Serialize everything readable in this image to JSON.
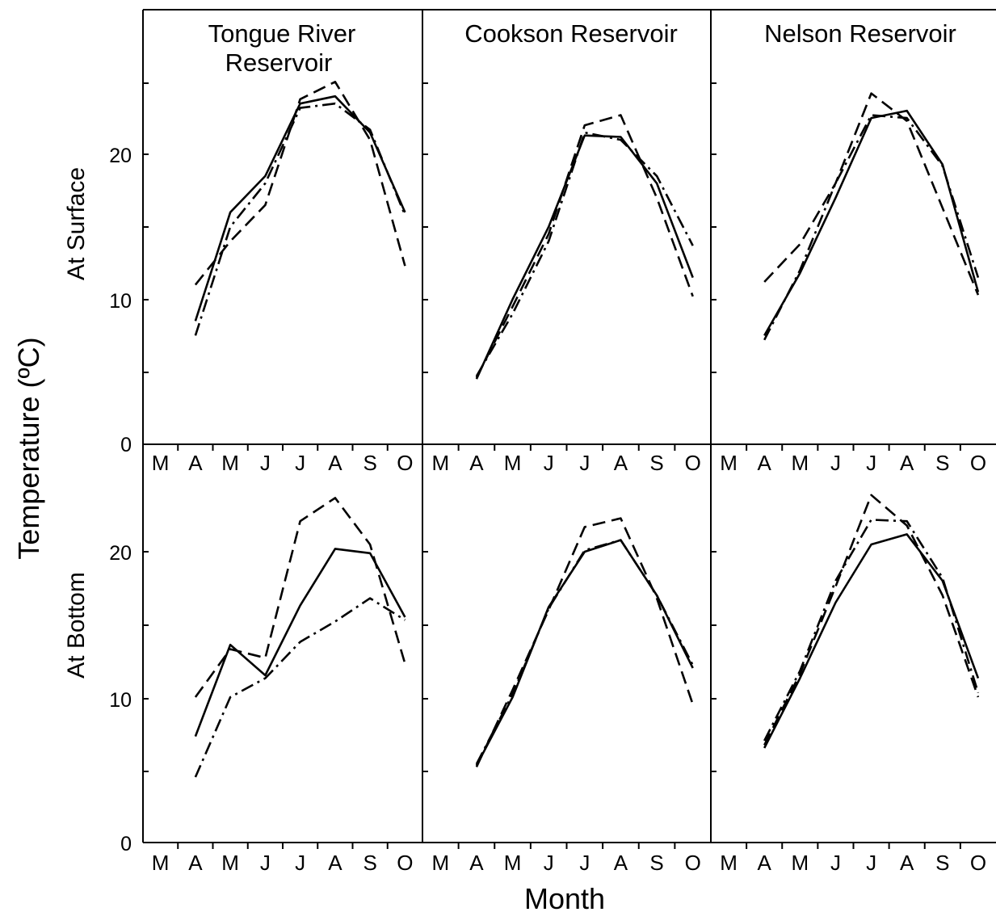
{
  "y_axis_label": "Temperature (ºC)",
  "x_axis_label": "Month",
  "rows": [
    {
      "label": "At Surface",
      "ticks": [
        "20",
        "10",
        "0"
      ]
    },
    {
      "label": "At Bottom",
      "ticks": [
        "20",
        "10",
        "0"
      ]
    }
  ],
  "columns": [
    {
      "title_lines": [
        "Tongue River",
        "Reservoir"
      ]
    },
    {
      "title_lines": [
        "Cookson Reservoir"
      ]
    },
    {
      "title_lines": [
        "Nelson Reservoir"
      ]
    }
  ],
  "months": [
    "M",
    "A",
    "M",
    "J",
    "J",
    "A",
    "S",
    "O"
  ],
  "colors": {
    "ink": "#000000",
    "background": "#ffffff"
  },
  "chart_data": [
    {
      "type": "line",
      "row": "At Surface",
      "column": "Tongue River Reservoir",
      "x": [
        "A",
        "M",
        "J",
        "J",
        "A",
        "S",
        "O"
      ],
      "ylim": [
        0,
        30
      ],
      "series": [
        {
          "line_style": "solid",
          "values": [
            8.5,
            16,
            18.5,
            23.5,
            24,
            21.5,
            16
          ]
        },
        {
          "line_style": "dashed",
          "values": [
            11,
            14,
            16.5,
            23.8,
            25,
            21,
            12.3
          ]
        },
        {
          "line_style": "dash-dot",
          "values": [
            7.5,
            15,
            18,
            23.2,
            23.5,
            21.7,
            15.8
          ]
        }
      ]
    },
    {
      "type": "line",
      "row": "At Surface",
      "column": "Cookson Reservoir",
      "x": [
        "A",
        "M",
        "J",
        "J",
        "A",
        "S",
        "O"
      ],
      "ylim": [
        0,
        30
      ],
      "series": [
        {
          "line_style": "solid",
          "values": [
            4.5,
            10,
            15,
            21.3,
            21.2,
            18,
            11.5
          ]
        },
        {
          "line_style": "dashed",
          "values": [
            4.6,
            9.5,
            14.5,
            22,
            22.7,
            17,
            10.2
          ]
        },
        {
          "line_style": "dash-dot",
          "values": [
            4.7,
            9,
            14,
            21.5,
            21,
            18.5,
            13.7
          ]
        }
      ]
    },
    {
      "type": "line",
      "row": "At Surface",
      "column": "Nelson Reservoir",
      "x": [
        "A",
        "M",
        "J",
        "J",
        "A",
        "S",
        "O"
      ],
      "ylim": [
        0,
        30
      ],
      "series": [
        {
          "line_style": "solid",
          "values": [
            7.5,
            11.8,
            17,
            22.5,
            23,
            19.3,
            10.5
          ]
        },
        {
          "line_style": "dashed",
          "values": [
            11.2,
            13.8,
            18,
            24.2,
            22.3,
            16.3,
            10.3
          ]
        },
        {
          "line_style": "dash-dot",
          "values": [
            7.2,
            12,
            18,
            22.7,
            22.5,
            19.2,
            11.5
          ]
        }
      ]
    },
    {
      "type": "line",
      "row": "At Bottom",
      "column": "Tongue River Reservoir",
      "x": [
        "A",
        "M",
        "J",
        "J",
        "A",
        "S",
        "O"
      ],
      "ylim": [
        0,
        27
      ],
      "series": [
        {
          "line_style": "solid",
          "values": [
            7.3,
            13.6,
            11.5,
            16.3,
            20.2,
            19.9,
            15.5
          ]
        },
        {
          "line_style": "dashed",
          "values": [
            10,
            13.3,
            12.7,
            22.1,
            23.7,
            20.5,
            12.3
          ]
        },
        {
          "line_style": "dash-dot",
          "values": [
            4.5,
            10,
            11.3,
            13.8,
            15.2,
            16.8,
            15.3
          ]
        }
      ]
    },
    {
      "type": "line",
      "row": "At Bottom",
      "column": "Cookson Reservoir",
      "x": [
        "A",
        "M",
        "J",
        "J",
        "A",
        "S",
        "O"
      ],
      "ylim": [
        0,
        27
      ],
      "series": [
        {
          "line_style": "solid",
          "values": [
            5.3,
            10,
            16.2,
            20,
            20.8,
            17,
            12
          ]
        },
        {
          "line_style": "dashed",
          "values": [
            5.2,
            10.5,
            16,
            21.7,
            22.3,
            16.8,
            9.5
          ]
        },
        {
          "line_style": "dash-dot",
          "values": [
            5.4,
            10.2,
            16.1,
            20.1,
            20.8,
            17,
            12.2
          ]
        }
      ]
    },
    {
      "type": "line",
      "row": "At Bottom",
      "column": "Nelson Reservoir",
      "x": [
        "A",
        "M",
        "J",
        "J",
        "A",
        "S",
        "O"
      ],
      "ylim": [
        0,
        27
      ],
      "series": [
        {
          "line_style": "solid",
          "values": [
            6.5,
            11.3,
            16.5,
            20.5,
            21.2,
            18,
            11.3
          ]
        },
        {
          "line_style": "dashed",
          "values": [
            6.7,
            11.6,
            17.6,
            23.9,
            21.8,
            17,
            10
          ]
        },
        {
          "line_style": "dash-dot",
          "values": [
            7,
            11.8,
            18,
            22.2,
            22.1,
            18.2,
            10.3
          ]
        }
      ]
    }
  ]
}
